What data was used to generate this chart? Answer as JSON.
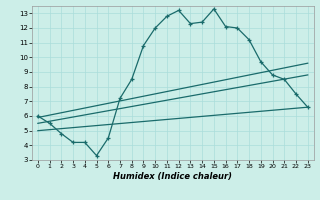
{
  "title": "",
  "xlabel": "Humidex (Indice chaleur)",
  "bg_color": "#cceee8",
  "line_color": "#1a6b6b",
  "grid_color": "#aaddda",
  "xlim": [
    -0.5,
    23.5
  ],
  "ylim": [
    3,
    13.5
  ],
  "xticks": [
    0,
    1,
    2,
    3,
    4,
    5,
    6,
    7,
    8,
    9,
    10,
    11,
    12,
    13,
    14,
    15,
    16,
    17,
    18,
    19,
    20,
    21,
    22,
    23
  ],
  "yticks": [
    3,
    4,
    5,
    6,
    7,
    8,
    9,
    10,
    11,
    12,
    13
  ],
  "curve_x": [
    0,
    1,
    2,
    3,
    4,
    5,
    6,
    7,
    8,
    9,
    10,
    11,
    12,
    13,
    14,
    15,
    16,
    17,
    18,
    19,
    20,
    21,
    22,
    23
  ],
  "curve_y": [
    6.0,
    5.5,
    4.8,
    4.2,
    4.2,
    3.3,
    4.5,
    7.2,
    8.5,
    10.8,
    12.0,
    12.8,
    13.2,
    12.3,
    12.4,
    13.3,
    12.1,
    12.0,
    11.2,
    9.7,
    8.8,
    8.5,
    7.5,
    6.6
  ],
  "line1_x": [
    0,
    23
  ],
  "line1_y": [
    5.9,
    9.6
  ],
  "line2_x": [
    0,
    23
  ],
  "line2_y": [
    5.5,
    8.8
  ],
  "line3_x": [
    0,
    23
  ],
  "line3_y": [
    5.0,
    6.6
  ]
}
